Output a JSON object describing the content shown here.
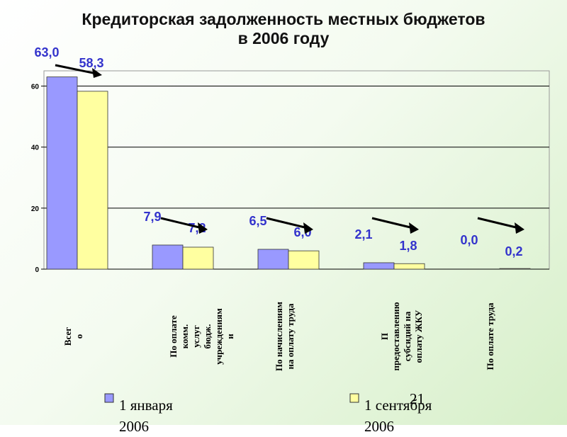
{
  "chart_data": {
    "type": "bar",
    "title": "Кредиторская задолженность местных бюджетов\nв 2006 году",
    "categories": [
      "Всег\nо",
      "По оплате\nкомм.\nуслуг\nбюдж.\nучреждениям\nи",
      "По начислениям\nна оплату труда",
      "П\nпредоставлению\nсубсидий на\nоплату ЖКУ",
      "По оплате  труда"
    ],
    "series": [
      {
        "name": "1 января\n2006",
        "color": "#9999ff",
        "values": [
          63.0,
          7.9,
          6.5,
          2.1,
          0.0
        ],
        "value_labels": [
          "63,0",
          "7,9",
          "6,5",
          "2,1",
          "0,0"
        ]
      },
      {
        "name": "1 сентября\n2006",
        "color": "#ffffa0",
        "values": [
          58.3,
          7.2,
          6.0,
          1.8,
          0.2
        ],
        "value_labels": [
          "58,3",
          "7,2",
          "6,0",
          "1,8",
          "0,2"
        ]
      }
    ],
    "ylim": [
      0,
      65
    ],
    "yticks": [
      0,
      20,
      40,
      60
    ],
    "grid": true,
    "page_number": "21"
  }
}
